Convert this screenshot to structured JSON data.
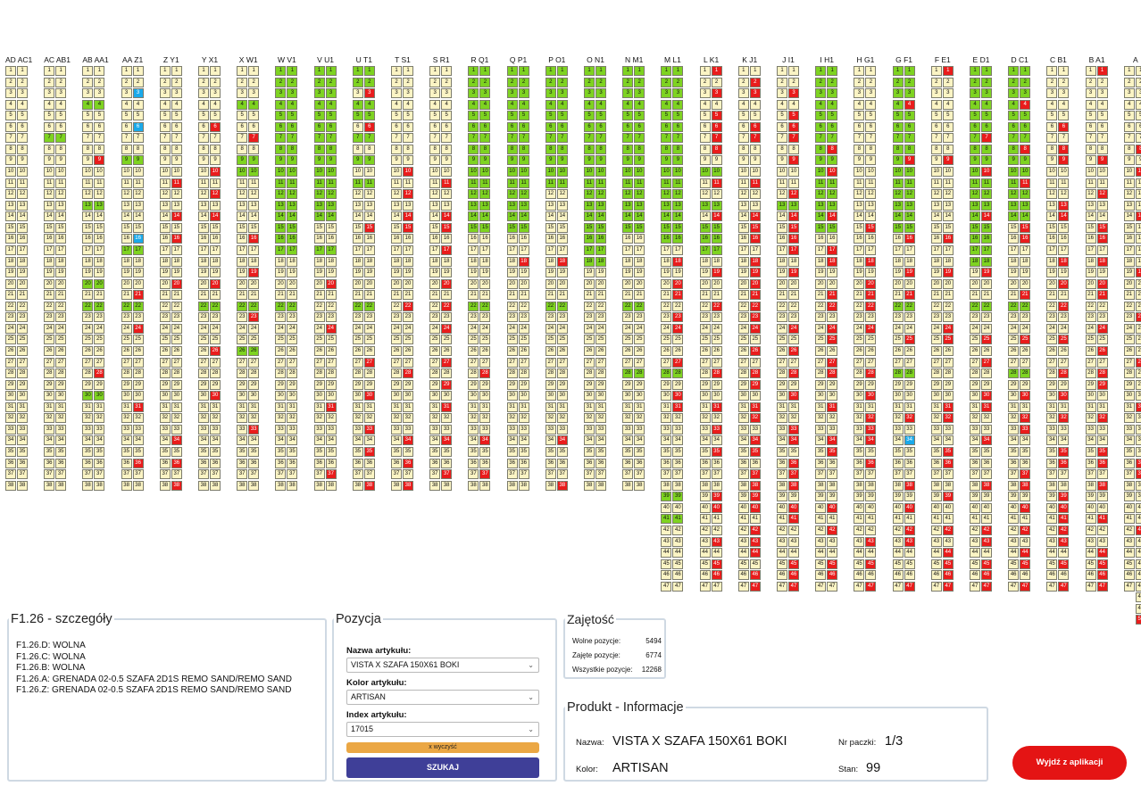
{
  "rack": {
    "rows": 38,
    "columns": [
      {
        "label": "AD AC1",
        "rows": 38,
        "red": [],
        "green": [],
        "blue": []
      },
      {
        "label": "AC AB1",
        "rows": 38,
        "red": [],
        "green": [
          7
        ],
        "blue": []
      },
      {
        "label": "AB AA1",
        "rows": 38,
        "red": [
          9,
          28
        ],
        "green": [
          4,
          13,
          20,
          22,
          30
        ],
        "blue": []
      },
      {
        "label": "AA Z1",
        "rows": 38,
        "red": [
          21,
          24,
          31,
          36
        ],
        "green": [
          9,
          17,
          22
        ],
        "blue": [
          3,
          6,
          16
        ]
      },
      {
        "label": "Z Y1",
        "rows": 38,
        "red": [
          11,
          14,
          16,
          20,
          34,
          36,
          38
        ],
        "green": [],
        "blue": []
      },
      {
        "label": "Y X1",
        "rows": 38,
        "red": [
          6,
          10,
          12,
          14,
          20,
          26,
          30
        ],
        "green": [
          22
        ],
        "blue": []
      },
      {
        "label": "X W1",
        "rows": 38,
        "red": [
          7,
          16,
          19,
          23,
          33
        ],
        "green": [
          4,
          9,
          10,
          22,
          26
        ],
        "blue": []
      },
      {
        "label": "W V1",
        "rows": 38,
        "red": [],
        "green": [
          1,
          2,
          3,
          4,
          5,
          6,
          7,
          8,
          9,
          10,
          11,
          12,
          13,
          14,
          15,
          16,
          17,
          22
        ],
        "blue": []
      },
      {
        "label": "V U1",
        "rows": 38,
        "red": [
          20,
          24,
          31,
          37
        ],
        "green": [
          1,
          2,
          3,
          4,
          5,
          6,
          7,
          8,
          9,
          10,
          11,
          12,
          13,
          14,
          17
        ],
        "blue": []
      },
      {
        "label": "U T1",
        "rows": 38,
        "red": [
          3,
          6,
          15,
          27,
          30,
          33,
          35,
          38
        ],
        "green": [
          1,
          2,
          4,
          5,
          7,
          9,
          11,
          22
        ],
        "blue": []
      },
      {
        "label": "T S1",
        "rows": 38,
        "red": [
          10,
          12,
          14,
          15,
          22,
          28,
          34,
          36,
          38
        ],
        "green": [],
        "blue": []
      },
      {
        "label": "S R1",
        "rows": 38,
        "red": [
          11,
          14,
          15,
          17,
          20,
          22,
          24,
          27,
          29,
          31,
          34,
          37
        ],
        "green": [],
        "blue": []
      },
      {
        "label": "R Q1",
        "rows": 38,
        "red": [
          28,
          34,
          37
        ],
        "green": [
          1,
          2,
          3,
          4,
          5,
          6,
          7,
          8,
          9,
          10,
          11,
          12,
          13,
          14,
          15,
          22
        ],
        "blue": []
      },
      {
        "label": "Q P1",
        "rows": 38,
        "red": [
          18
        ],
        "green": [
          1,
          2,
          3,
          4,
          5,
          6,
          7,
          8,
          9,
          10,
          11,
          12,
          13,
          14,
          15
        ],
        "blue": []
      },
      {
        "label": "P O1",
        "rows": 38,
        "red": [
          18,
          34,
          38
        ],
        "green": [
          1,
          2,
          3,
          4,
          5,
          6,
          7,
          8,
          9,
          10,
          11,
          22
        ],
        "blue": []
      },
      {
        "label": "O N1",
        "rows": 38,
        "red": [],
        "green": [
          1,
          2,
          3,
          4,
          5,
          6,
          7,
          8,
          9,
          10,
          11,
          12,
          13,
          14,
          15,
          16,
          17,
          18
        ],
        "blue": []
      },
      {
        "label": "N M1",
        "rows": 38,
        "red": [],
        "green": [
          1,
          2,
          3,
          4,
          5,
          6,
          7,
          8,
          9,
          10,
          11,
          12,
          13,
          14,
          15,
          22,
          28
        ],
        "blue": []
      },
      {
        "label": "M L1",
        "rows": 47,
        "red": [
          18,
          20,
          21,
          23,
          24,
          27,
          30,
          31
        ],
        "green": [
          1,
          2,
          3,
          4,
          5,
          6,
          7,
          8,
          9,
          10,
          11,
          12,
          13,
          14,
          15,
          16,
          28,
          39,
          41
        ],
        "blue": []
      },
      {
        "label": "L K1",
        "rows": 47,
        "red": [
          1,
          3,
          5,
          6,
          7,
          8,
          11,
          14,
          19,
          22,
          28,
          31,
          33,
          35,
          39,
          40,
          43,
          45,
          46
        ],
        "green": [
          10,
          13,
          15,
          16,
          17
        ],
        "blue": []
      },
      {
        "label": "K J1",
        "rows": 47,
        "red": [
          2,
          3,
          6,
          7,
          11,
          14,
          15,
          16,
          18,
          19,
          20,
          21,
          22,
          23,
          24,
          26,
          28,
          29,
          31,
          32,
          34,
          35,
          37,
          38,
          39,
          40,
          42,
          43,
          44,
          46,
          47
        ],
        "green": [],
        "blue": []
      },
      {
        "label": "J I1",
        "rows": 47,
        "red": [
          3,
          5,
          6,
          7,
          9,
          12,
          14,
          15,
          16,
          17,
          19,
          24,
          26,
          28,
          30,
          33,
          34,
          36,
          37,
          38,
          40,
          41,
          45,
          46,
          47
        ],
        "green": [
          13
        ],
        "blue": []
      },
      {
        "label": "I H1",
        "rows": 47,
        "red": [
          8,
          10,
          14,
          17,
          18,
          21,
          22,
          24,
          25,
          27,
          28,
          31,
          34,
          35,
          40,
          42,
          45,
          46
        ],
        "green": [
          1,
          2,
          3,
          4,
          5,
          6,
          7,
          8,
          9,
          10,
          11,
          12,
          13,
          14,
          15
        ],
        "blue": []
      },
      {
        "label": "H G1",
        "rows": 47,
        "red": [
          15,
          18,
          20,
          21,
          22,
          24,
          28,
          30,
          32,
          33,
          34,
          36,
          43,
          45,
          47
        ],
        "green": [],
        "blue": []
      },
      {
        "label": "G F1",
        "rows": 47,
        "red": [
          4,
          9,
          16,
          19,
          21,
          25,
          32,
          34,
          38,
          40,
          42,
          43,
          47
        ],
        "green": [
          1,
          2,
          3,
          4,
          5,
          6,
          7,
          8,
          9,
          10,
          11,
          12,
          13,
          14,
          15,
          22,
          28
        ],
        "blue": [
          34
        ]
      },
      {
        "label": "F E1",
        "rows": 47,
        "red": [
          1,
          9,
          16,
          19,
          24,
          25,
          31,
          32,
          35,
          36,
          39,
          42,
          44,
          45,
          46,
          47
        ],
        "green": [],
        "blue": []
      },
      {
        "label": "E D1",
        "rows": 47,
        "red": [
          7,
          10,
          14,
          19,
          25,
          27,
          30,
          31,
          34,
          38,
          42,
          43,
          45,
          46,
          47
        ],
        "green": [
          1,
          2,
          3,
          4,
          5,
          6,
          7,
          8,
          9,
          10,
          11,
          12,
          13,
          14,
          15,
          16,
          17,
          18,
          22
        ],
        "blue": []
      },
      {
        "label": "D C1",
        "rows": 47,
        "red": [
          4,
          8,
          11,
          15,
          16,
          21,
          25,
          30,
          32,
          33,
          37,
          38,
          40,
          42,
          44,
          45,
          47
        ],
        "green": [
          1,
          2,
          3,
          4,
          5,
          6,
          7,
          8,
          9,
          10,
          11,
          12,
          13,
          14,
          22,
          28
        ],
        "blue": []
      },
      {
        "label": "C B1",
        "rows": 47,
        "red": [
          6,
          8,
          9,
          13,
          14,
          18,
          20,
          22,
          25,
          28,
          30,
          32,
          35,
          36,
          39,
          40,
          41,
          42,
          43,
          45,
          47
        ],
        "green": [],
        "blue": []
      },
      {
        "label": "B A1",
        "rows": 47,
        "red": [
          1,
          9,
          12,
          15,
          16,
          18,
          20,
          21,
          24,
          26,
          28,
          29,
          32,
          35,
          36,
          38,
          41,
          44,
          45,
          46,
          47
        ],
        "green": [],
        "blue": []
      },
      {
        "label": "A",
        "rows": 50,
        "red": [
          8,
          10,
          14,
          19,
          23,
          27,
          31,
          36,
          37,
          42,
          50
        ],
        "green": [],
        "blue": []
      }
    ]
  },
  "details": {
    "title": "F1.26 - szczegóły",
    "lines": [
      "F1.26.D: WOLNA",
      "F1.26.C: WOLNA",
      "F1.26.B: WOLNA",
      "F1.26.A: GRENADA 02-0.5 SZAFA 2D1S REMO SAND/REMO SAND",
      "F1.26.Z: GRENADA 02-0.5 SZAFA 2D1S REMO SAND/REMO SAND"
    ]
  },
  "pozycja": {
    "title": "Pozycja",
    "name_label": "Nazwa artykułu:",
    "name_value": "VISTA X SZAFA 150X61 BOKI",
    "color_label": "Kolor artykułu:",
    "color_value": "ARTISAN",
    "index_label": "Index artykułu:",
    "index_value": "17015",
    "clear_label": "x wyczyść",
    "search_label": "SZUKAJ"
  },
  "zajetosc": {
    "title": "Zajętość",
    "free_label": "Wolne pozycje:",
    "free_value": "5494",
    "taken_label": "Zajęte pozycje:",
    "taken_value": "6774",
    "all_label": "Wszystkie pozycje:",
    "all_value": "12268"
  },
  "produkt": {
    "title": "Produkt - Informacje",
    "name_label": "Nazwa:",
    "name_value": "VISTA X SZAFA 150X61 BOKI",
    "color_label": "Kolor:",
    "color_value": "ARTISAN",
    "package_label": "Nr paczki:",
    "package_value": "1/3",
    "stock_label": "Stan:",
    "stock_value": "99"
  },
  "exit_label": "Wyjdź z aplikacji",
  "colors": {
    "empty": "#fbf4c4",
    "taken": "#e91c1c",
    "highlight": "#7ed321",
    "selected": "#1aa9ea",
    "search_button": "#3f3f98",
    "clear_button": "#eba744",
    "exit_button": "#e41414",
    "panel_border": "#cfd9e3"
  }
}
